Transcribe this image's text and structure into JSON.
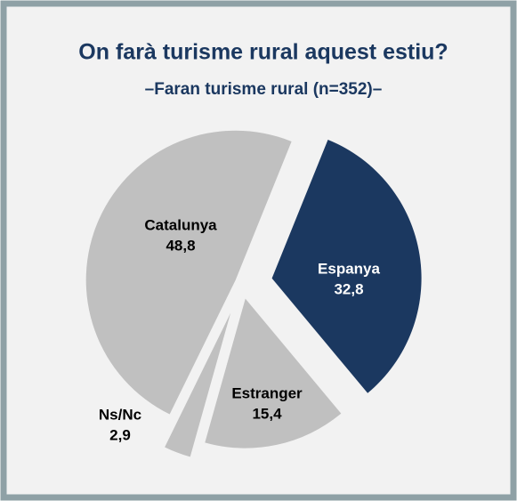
{
  "chart_data": {
    "type": "pie",
    "title": "On farà turisme rural aquest estiu?",
    "subtitle": "–Faran turisme rural (n=352)–",
    "categories": [
      "Espanya",
      "Estranger",
      "Ns/Nc",
      "Catalunya"
    ],
    "values": [
      32.8,
      15.4,
      2.9,
      48.8
    ],
    "value_labels": [
      "32,8",
      "15,4",
      "2,9",
      "48,8"
    ],
    "colors": [
      "#1b3860",
      "#c0c0c0",
      "#c0c0c0",
      "#c0c0c0"
    ]
  }
}
